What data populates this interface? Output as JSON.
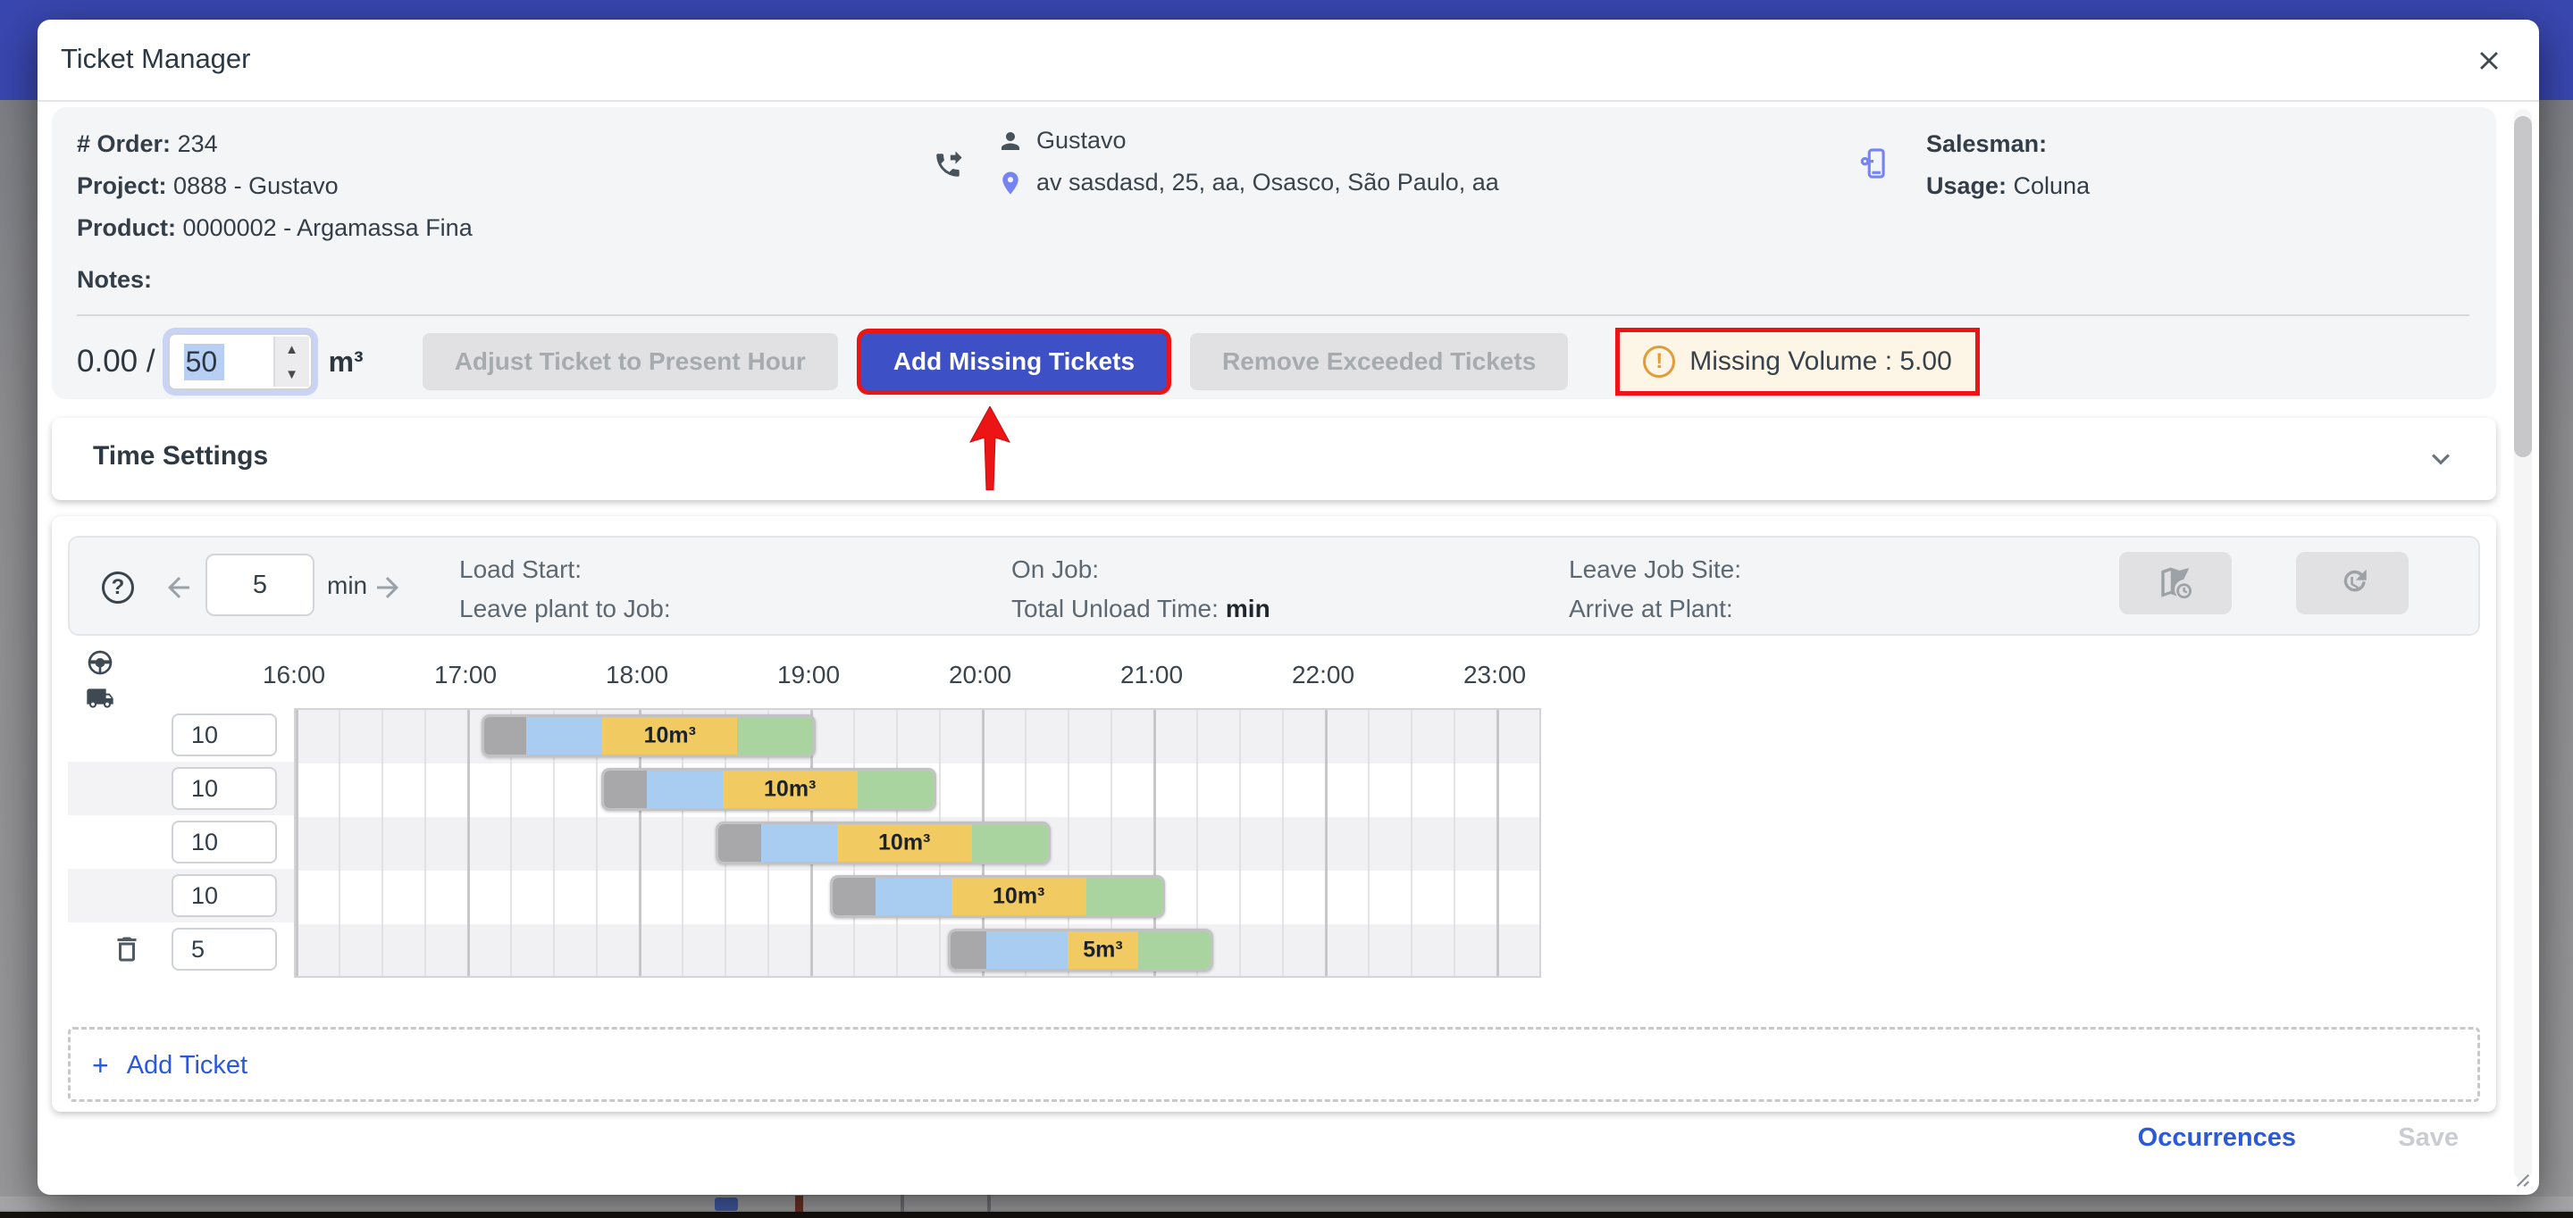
{
  "colors": {
    "primary": "#3d50c6",
    "page_header": "#3947b0",
    "annotation": "#ec1414",
    "link": "#2c59d8",
    "warning_icon": "#e09c3a",
    "warning_bg": "#fdf5e6",
    "segment_colors": [
      "#a8a8aa",
      "#a9ccf1",
      "#f1ca61",
      "#a9d4a0"
    ]
  },
  "modal": {
    "title": "Ticket Manager"
  },
  "order_info": {
    "order_label": "# Order:",
    "order_value": "234",
    "project_label": "Project:",
    "project_value": "0888 - Gustavo",
    "product_label": "Product:",
    "product_value": "0000002 - Argamassa Fina",
    "customer_name": "Gustavo",
    "address": "av sasdasd, 25, aa, Osasco, São Paulo, aa",
    "salesman_label": "Salesman:",
    "usage_label": "Usage:",
    "usage_value": "Coluna",
    "notes_label": "Notes:"
  },
  "volume_bar": {
    "current": "0.00",
    "separator": "/",
    "target_value": "50",
    "unit": "m³",
    "adjust_button": "Adjust Ticket to Present Hour",
    "add_missing_button": "Add Missing Tickets",
    "remove_exceeded_button": "Remove Exceeded Tickets",
    "missing_volume_text": "Missing Volume : 5.00",
    "warning_glyph": "!"
  },
  "time_settings": {
    "title": "Time Settings"
  },
  "toolbar": {
    "interval_value": "5",
    "interval_unit": "min",
    "help_glyph": "?",
    "fields": [
      {
        "label": "Load Start:",
        "value": ""
      },
      {
        "label": "Leave plant to Job:",
        "value": ""
      },
      {
        "label": "On Job:",
        "value": ""
      },
      {
        "label": "Total Unload Time:",
        "value": "min"
      },
      {
        "label": "Leave Job Site:",
        "value": ""
      },
      {
        "label": "Arrive at Plant:",
        "value": ""
      }
    ]
  },
  "gantt": {
    "axis_hours": [
      "16:00",
      "17:00",
      "18:00",
      "19:00",
      "20:00",
      "21:00",
      "22:00",
      "23:00"
    ],
    "minutes_per_cell": 15,
    "total_minutes": 435,
    "segment_names": [
      "load",
      "travel-to-job",
      "unload",
      "return-to-plant"
    ],
    "rows": [
      {
        "volume": "10",
        "label": "10m³",
        "start_min": 65,
        "segments": [
          15,
          27,
          48,
          27
        ],
        "deletable": false
      },
      {
        "volume": "10",
        "label": "10m³",
        "start_min": 107,
        "segments": [
          15,
          27,
          48,
          27
        ],
        "deletable": false
      },
      {
        "volume": "10",
        "label": "10m³",
        "start_min": 147,
        "segments": [
          15,
          27,
          48,
          27
        ],
        "deletable": false
      },
      {
        "volume": "10",
        "label": "10m³",
        "start_min": 187,
        "segments": [
          15,
          27,
          48,
          27
        ],
        "deletable": false
      },
      {
        "volume": "5",
        "label": "5m³",
        "start_min": 228,
        "segments": [
          13,
          29,
          25,
          26
        ],
        "deletable": true
      }
    ]
  },
  "add_ticket": {
    "plus": "+",
    "label": "Add Ticket"
  },
  "footer": {
    "occurrences_label": "Occurrences",
    "save_label": "Save"
  }
}
